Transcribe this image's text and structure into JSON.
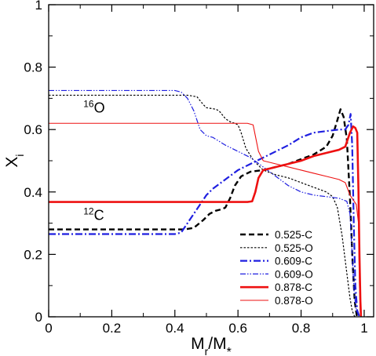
{
  "chart_data": {
    "type": "line",
    "xlabel": "Mr/M*",
    "ylabel": "Xi",
    "xlim": [
      0,
      1.03
    ],
    "ylim": [
      0,
      1
    ],
    "x_ticks": [
      "0",
      "0.2",
      "0.4",
      "0.6",
      "0.8",
      "1"
    ],
    "y_ticks": [
      "0",
      "0.2",
      "0.4",
      "0.6",
      "0.8",
      "1"
    ],
    "legend_position": "bottom-right",
    "annotations": [
      {
        "text": "16O",
        "sup": "16",
        "base": "O",
        "x": 0.11,
        "y": 0.655
      },
      {
        "text": "12C",
        "sup": "12",
        "base": "C",
        "x": 0.11,
        "y": 0.31
      }
    ],
    "series": [
      {
        "name": "0.525-C",
        "color": "#000000",
        "dash": "dashed",
        "width": 2.4,
        "points": [
          [
            0,
            0.28
          ],
          [
            0.43,
            0.28
          ],
          [
            0.46,
            0.285
          ],
          [
            0.49,
            0.31
          ],
          [
            0.51,
            0.33
          ],
          [
            0.53,
            0.34
          ],
          [
            0.55,
            0.345
          ],
          [
            0.56,
            0.35
          ],
          [
            0.575,
            0.38
          ],
          [
            0.59,
            0.42
          ],
          [
            0.61,
            0.45
          ],
          [
            0.64,
            0.465
          ],
          [
            0.68,
            0.47
          ],
          [
            0.72,
            0.48
          ],
          [
            0.76,
            0.49
          ],
          [
            0.8,
            0.505
          ],
          [
            0.84,
            0.52
          ],
          [
            0.88,
            0.545
          ],
          [
            0.9,
            0.58
          ],
          [
            0.915,
            0.63
          ],
          [
            0.925,
            0.665
          ],
          [
            0.935,
            0.64
          ],
          [
            0.945,
            0.57
          ],
          [
            0.955,
            0.38
          ],
          [
            0.963,
            0.18
          ],
          [
            0.97,
            0.05
          ],
          [
            0.977,
            0.0
          ]
        ]
      },
      {
        "name": "0.525-O",
        "color": "#000000",
        "dash": "dotted",
        "width": 1.2,
        "points": [
          [
            0,
            0.71
          ],
          [
            0.44,
            0.71
          ],
          [
            0.47,
            0.705
          ],
          [
            0.49,
            0.68
          ],
          [
            0.5,
            0.67
          ],
          [
            0.53,
            0.665
          ],
          [
            0.54,
            0.66
          ],
          [
            0.56,
            0.635
          ],
          [
            0.575,
            0.625
          ],
          [
            0.59,
            0.62
          ],
          [
            0.6,
            0.615
          ],
          [
            0.61,
            0.59
          ],
          [
            0.625,
            0.54
          ],
          [
            0.65,
            0.5
          ],
          [
            0.68,
            0.47
          ],
          [
            0.72,
            0.455
          ],
          [
            0.76,
            0.445
          ],
          [
            0.8,
            0.43
          ],
          [
            0.84,
            0.415
          ],
          [
            0.88,
            0.4
          ],
          [
            0.9,
            0.385
          ],
          [
            0.915,
            0.35
          ],
          [
            0.93,
            0.26
          ],
          [
            0.945,
            0.14
          ],
          [
            0.955,
            0.06
          ],
          [
            0.962,
            0.02
          ],
          [
            0.97,
            0.0
          ]
        ]
      },
      {
        "name": "0.609-C",
        "color": "#1f1fe0",
        "dash": "dashdot",
        "width": 2.2,
        "points": [
          [
            0,
            0.265
          ],
          [
            0.4,
            0.265
          ],
          [
            0.42,
            0.27
          ],
          [
            0.44,
            0.3
          ],
          [
            0.46,
            0.33
          ],
          [
            0.48,
            0.36
          ],
          [
            0.5,
            0.39
          ],
          [
            0.52,
            0.41
          ],
          [
            0.56,
            0.44
          ],
          [
            0.6,
            0.47
          ],
          [
            0.64,
            0.49
          ],
          [
            0.68,
            0.51
          ],
          [
            0.72,
            0.53
          ],
          [
            0.76,
            0.55
          ],
          [
            0.8,
            0.575
          ],
          [
            0.84,
            0.59
          ],
          [
            0.88,
            0.595
          ],
          [
            0.92,
            0.6
          ],
          [
            0.94,
            0.6
          ],
          [
            0.95,
            0.615
          ],
          [
            0.957,
            0.65
          ],
          [
            0.962,
            0.55
          ],
          [
            0.967,
            0.3
          ],
          [
            0.972,
            0.1
          ],
          [
            0.978,
            0.02
          ],
          [
            0.985,
            0.0
          ]
        ]
      },
      {
        "name": "0.609-O",
        "color": "#1f1fe0",
        "dash": "dashdotdot",
        "width": 1.2,
        "points": [
          [
            0,
            0.725
          ],
          [
            0.4,
            0.725
          ],
          [
            0.42,
            0.72
          ],
          [
            0.44,
            0.7
          ],
          [
            0.46,
            0.66
          ],
          [
            0.48,
            0.6
          ],
          [
            0.5,
            0.58
          ],
          [
            0.52,
            0.575
          ],
          [
            0.56,
            0.55
          ],
          [
            0.6,
            0.53
          ],
          [
            0.64,
            0.51
          ],
          [
            0.68,
            0.48
          ],
          [
            0.72,
            0.45
          ],
          [
            0.76,
            0.42
          ],
          [
            0.8,
            0.4
          ],
          [
            0.84,
            0.39
          ],
          [
            0.88,
            0.385
          ],
          [
            0.92,
            0.38
          ],
          [
            0.945,
            0.37
          ],
          [
            0.955,
            0.33
          ],
          [
            0.962,
            0.2
          ],
          [
            0.968,
            0.08
          ],
          [
            0.975,
            0.02
          ],
          [
            0.985,
            0.0
          ]
        ]
      },
      {
        "name": "0.878-C",
        "color": "#ee1111",
        "dash": "solid",
        "width": 2.6,
        "points": [
          [
            0,
            0.368
          ],
          [
            0.63,
            0.368
          ],
          [
            0.645,
            0.37
          ],
          [
            0.655,
            0.4
          ],
          [
            0.665,
            0.445
          ],
          [
            0.68,
            0.47
          ],
          [
            0.72,
            0.48
          ],
          [
            0.76,
            0.49
          ],
          [
            0.8,
            0.5
          ],
          [
            0.84,
            0.515
          ],
          [
            0.88,
            0.525
          ],
          [
            0.92,
            0.535
          ],
          [
            0.94,
            0.545
          ],
          [
            0.955,
            0.59
          ],
          [
            0.965,
            0.61
          ],
          [
            0.972,
            0.605
          ],
          [
            0.978,
            0.59
          ],
          [
            0.982,
            0.4
          ],
          [
            0.985,
            0.2
          ],
          [
            0.988,
            0.05
          ],
          [
            0.99,
            0.0
          ]
        ]
      },
      {
        "name": "0.878-O",
        "color": "#ee1111",
        "dash": "solid",
        "width": 1.1,
        "points": [
          [
            0,
            0.62
          ],
          [
            0.63,
            0.62
          ],
          [
            0.648,
            0.615
          ],
          [
            0.655,
            0.58
          ],
          [
            0.665,
            0.53
          ],
          [
            0.68,
            0.5
          ],
          [
            0.72,
            0.49
          ],
          [
            0.76,
            0.48
          ],
          [
            0.8,
            0.47
          ],
          [
            0.84,
            0.46
          ],
          [
            0.88,
            0.45
          ],
          [
            0.92,
            0.44
          ],
          [
            0.94,
            0.43
          ],
          [
            0.955,
            0.39
          ],
          [
            0.965,
            0.375
          ],
          [
            0.975,
            0.36
          ],
          [
            0.982,
            0.3
          ],
          [
            0.985,
            0.1
          ],
          [
            0.988,
            0.0
          ]
        ]
      }
    ]
  }
}
